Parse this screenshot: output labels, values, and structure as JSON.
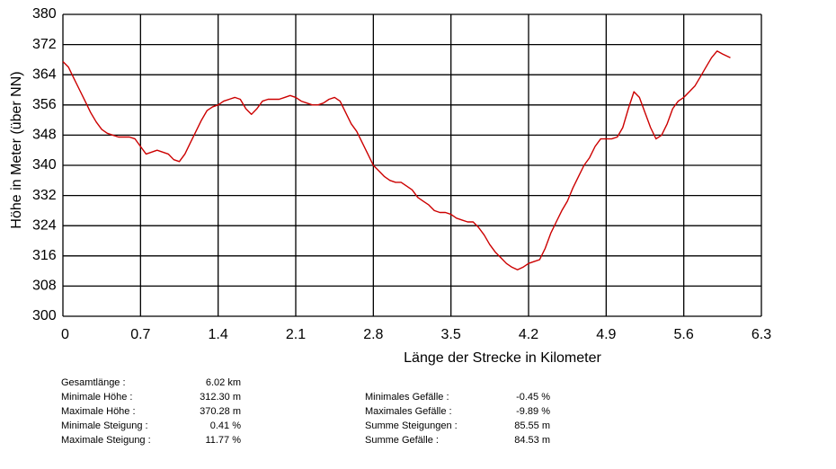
{
  "chart_data": {
    "type": "line",
    "xlabel": "Länge der Strecke in Kilometer",
    "ylabel": "Höhe in Meter (über NN)",
    "xlim": [
      0,
      6.3
    ],
    "ylim": [
      300,
      380
    ],
    "x_ticks": [
      "0",
      "0.7",
      "1.4",
      "2.1",
      "2.8",
      "3.5",
      "4.2",
      "4.9",
      "5.6",
      "6.3"
    ],
    "y_ticks": [
      "380",
      "372",
      "364",
      "356",
      "348",
      "340",
      "332",
      "324",
      "316",
      "308",
      "300"
    ],
    "grid": true,
    "line_color": "#cc0000",
    "series": [
      {
        "x": [
          0,
          0.05,
          0.1,
          0.15,
          0.2,
          0.25,
          0.3,
          0.35,
          0.4,
          0.45,
          0.5,
          0.55,
          0.6,
          0.65,
          0.7,
          0.75,
          0.8,
          0.85,
          0.9,
          0.95,
          1.0,
          1.05,
          1.1,
          1.15,
          1.2,
          1.25,
          1.3,
          1.35,
          1.4,
          1.45,
          1.5,
          1.55,
          1.6,
          1.65,
          1.7,
          1.75,
          1.8,
          1.85,
          1.9,
          1.95,
          2.0,
          2.05,
          2.1,
          2.15,
          2.2,
          2.25,
          2.3,
          2.35,
          2.4,
          2.45,
          2.5,
          2.55,
          2.6,
          2.65,
          2.7,
          2.75,
          2.8,
          2.85,
          2.9,
          2.95,
          3.0,
          3.05,
          3.1,
          3.15,
          3.2,
          3.25,
          3.3,
          3.35,
          3.4,
          3.45,
          3.5,
          3.55,
          3.6,
          3.65,
          3.7,
          3.75,
          3.8,
          3.85,
          3.9,
          3.95,
          4.0,
          4.05,
          4.1,
          4.15,
          4.2,
          4.25,
          4.3,
          4.35,
          4.4,
          4.45,
          4.5,
          4.55,
          4.6,
          4.65,
          4.7,
          4.75,
          4.8,
          4.85,
          4.9,
          4.95,
          5.0,
          5.05,
          5.1,
          5.15,
          5.2,
          5.25,
          5.3,
          5.35,
          5.4,
          5.45,
          5.5,
          5.55,
          5.6,
          5.65,
          5.7,
          5.75,
          5.8,
          5.85,
          5.9,
          5.95,
          6.02
        ],
        "y": [
          367.5,
          366,
          363,
          360,
          357,
          354,
          351.5,
          349.5,
          348.5,
          348,
          347.5,
          347.5,
          347.5,
          347,
          345,
          343,
          343.5,
          344,
          343.5,
          343,
          341.5,
          341,
          343,
          346,
          349,
          352,
          354.5,
          355.5,
          356,
          357,
          357.5,
          358,
          357.5,
          355,
          353.5,
          355,
          357,
          357.5,
          357.5,
          357.5,
          358,
          358.5,
          358,
          357,
          356.5,
          356,
          356,
          356.5,
          357.5,
          358,
          357,
          354,
          351,
          349,
          346,
          343,
          340,
          338.5,
          337,
          336,
          335.5,
          335.5,
          334.5,
          333.5,
          331.5,
          330.5,
          329.5,
          328,
          327.5,
          327.5,
          327,
          326,
          325.5,
          325,
          325,
          323.5,
          321.5,
          319,
          317,
          315.5,
          314,
          313,
          312.3,
          313,
          314,
          314.5,
          315,
          318,
          322,
          325,
          328,
          330.5,
          334,
          337,
          340,
          342,
          345,
          347,
          347,
          347,
          347.5,
          350,
          355,
          359.5,
          358,
          354,
          350,
          347,
          348,
          351,
          355,
          357,
          358,
          359.5,
          361,
          363.5,
          366,
          368.5,
          370.28,
          369.5,
          368.5
        ]
      }
    ]
  },
  "stats_left": [
    {
      "label": "Gesamtlänge :",
      "value": "6.02 km"
    },
    {
      "label": "Minimale Höhe :",
      "value": "312.30 m"
    },
    {
      "label": "Maximale Höhe :",
      "value": "370.28 m"
    },
    {
      "label": "Minimale Steigung :",
      "value": "0.41 %"
    },
    {
      "label": "Maximale Steigung :",
      "value": "11.77 %"
    }
  ],
  "stats_right": [
    {
      "label": "Minimales Gefälle :",
      "value": "-0.45 %"
    },
    {
      "label": "Maximales Gefälle :",
      "value": "-9.89 %"
    },
    {
      "label": "Summe Steigungen :",
      "value": "85.55 m"
    },
    {
      "label": "Summe Gefälle :",
      "value": "84.53 m"
    }
  ]
}
